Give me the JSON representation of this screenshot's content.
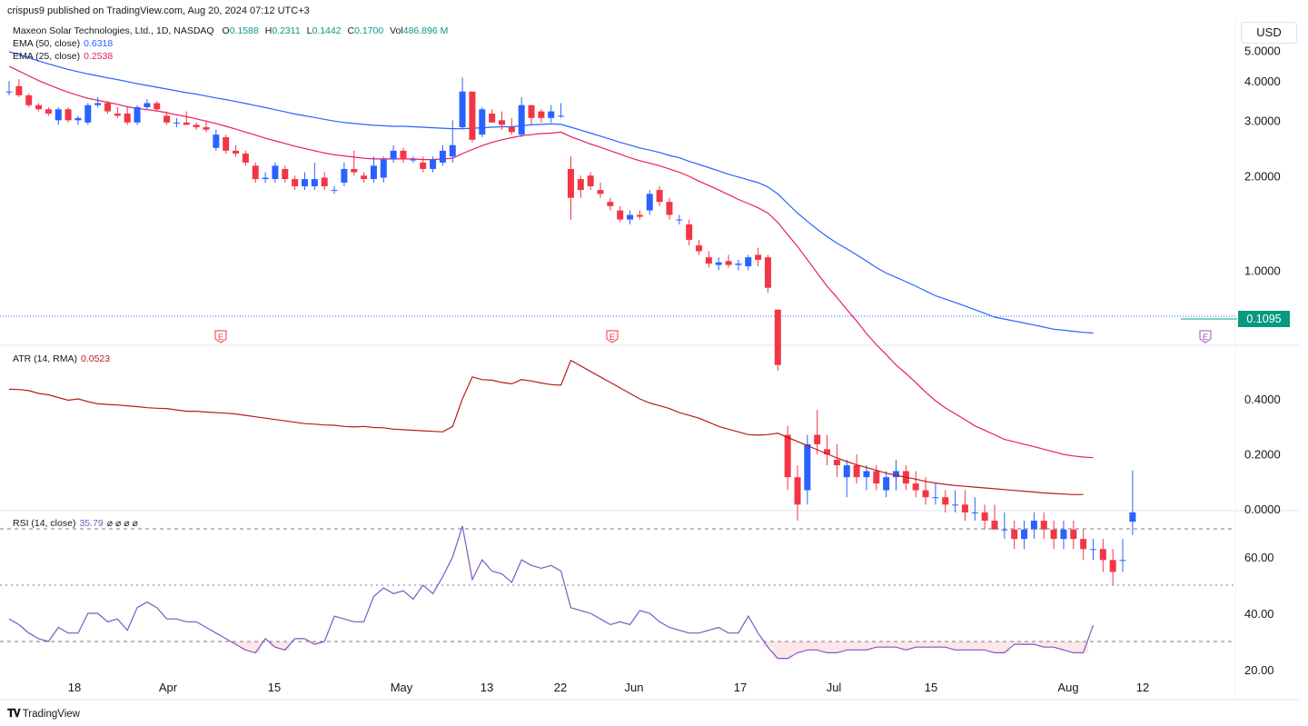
{
  "header": {
    "published_by": "crispus9 published on TradingView.com, Aug 20, 2024 07:12 UTC+3"
  },
  "main_legend": {
    "symbol": "Maxeon Solar Technologies, Ltd., 1D, NASDAQ",
    "o_label": "O",
    "o": "0.1588",
    "h_label": "H",
    "h": "0.2311",
    "l_label": "L",
    "l": "0.1442",
    "c_label": "C",
    "c": "0.1700",
    "vol_label": "Vol",
    "vol": "486.896 M"
  },
  "ema50": {
    "label": "EMA (50, close)",
    "value": "0.6318",
    "color": "#2962ff"
  },
  "ema25": {
    "label": "EMA (25, close)",
    "value": "0.2538",
    "color": "#e91e63"
  },
  "atr_legend": {
    "label": "ATR (14, RMA)",
    "value": "0.0523",
    "color": "#b71c1c"
  },
  "rsi_legend": {
    "label": "RSI (14, close)",
    "value": "35.79",
    "extras": "⌀ ⌀ ⌀ ⌀",
    "color": "#7e57c2"
  },
  "currency_button": "USD",
  "last_price": "0.1095",
  "earnings_marker": "E",
  "footer": {
    "brand": "TradingView"
  },
  "colors": {
    "up": "#2962ff",
    "down": "#f23645",
    "grid_text": "#131722",
    "last_price_bg": "#089981"
  },
  "chart_data": [
    {
      "type": "candlestick",
      "title": "Maxeon Solar Technologies, Ltd., 1D, NASDAQ",
      "y_ticks": [
        "5.0000",
        "4.0000",
        "3.0000",
        "2.0000",
        "1.0000"
      ],
      "x_ticks": [
        "18",
        "Apr",
        "15",
        "May",
        "13",
        "22",
        "Jun",
        "17",
        "Jul",
        "15",
        "Aug",
        "12"
      ],
      "scale": "log",
      "ohlc": [
        [
          3.7,
          4.0,
          3.6,
          3.7
        ],
        [
          3.85,
          4.05,
          3.55,
          3.6
        ],
        [
          3.6,
          3.65,
          3.3,
          3.35
        ],
        [
          3.35,
          3.4,
          3.2,
          3.25
        ],
        [
          3.25,
          3.3,
          3.1,
          3.15
        ],
        [
          3.0,
          3.3,
          2.9,
          3.25
        ],
        [
          3.25,
          3.3,
          2.95,
          3.0
        ],
        [
          3.0,
          3.1,
          2.9,
          3.05
        ],
        [
          2.95,
          3.4,
          2.9,
          3.35
        ],
        [
          3.35,
          3.55,
          3.3,
          3.4
        ],
        [
          3.4,
          3.45,
          3.15,
          3.2
        ],
        [
          3.15,
          3.3,
          3.05,
          3.1
        ],
        [
          3.15,
          3.3,
          2.9,
          2.95
        ],
        [
          2.95,
          3.35,
          2.9,
          3.3
        ],
        [
          3.3,
          3.5,
          3.25,
          3.4
        ],
        [
          3.4,
          3.45,
          3.2,
          3.25
        ],
        [
          3.1,
          3.2,
          2.9,
          2.95
        ],
        [
          2.95,
          3.05,
          2.85,
          2.95
        ],
        [
          2.95,
          3.2,
          2.9,
          2.9
        ],
        [
          2.9,
          2.95,
          2.8,
          2.85
        ],
        [
          2.85,
          3.0,
          2.75,
          2.8
        ],
        [
          2.45,
          2.8,
          2.4,
          2.7
        ],
        [
          2.65,
          2.7,
          2.35,
          2.4
        ],
        [
          2.4,
          2.5,
          2.3,
          2.35
        ],
        [
          2.35,
          2.4,
          2.15,
          2.2
        ],
        [
          2.15,
          2.2,
          1.9,
          1.95
        ],
        [
          1.95,
          2.05,
          1.9,
          1.97
        ],
        [
          1.95,
          2.2,
          1.9,
          2.15
        ],
        [
          2.1,
          2.15,
          1.9,
          1.95
        ],
        [
          1.95,
          2.0,
          1.8,
          1.85
        ],
        [
          1.85,
          2.05,
          1.8,
          1.95
        ],
        [
          1.85,
          2.2,
          1.8,
          1.95
        ],
        [
          1.97,
          2.05,
          1.8,
          1.85
        ],
        [
          1.8,
          1.85,
          1.75,
          1.8
        ],
        [
          1.9,
          2.2,
          1.85,
          2.1
        ],
        [
          2.1,
          2.4,
          2.0,
          2.05
        ],
        [
          2.0,
          2.05,
          1.9,
          1.95
        ],
        [
          1.95,
          2.3,
          1.9,
          2.15
        ],
        [
          1.97,
          2.3,
          1.9,
          2.25
        ],
        [
          2.25,
          2.5,
          2.2,
          2.4
        ],
        [
          2.4,
          2.45,
          2.2,
          2.25
        ],
        [
          2.25,
          2.3,
          2.2,
          2.25
        ],
        [
          2.2,
          2.3,
          2.05,
          2.1
        ],
        [
          2.1,
          2.3,
          2.05,
          2.25
        ],
        [
          2.2,
          2.5,
          2.15,
          2.4
        ],
        [
          2.3,
          3.0,
          2.2,
          2.5
        ],
        [
          2.85,
          4.1,
          2.8,
          3.7
        ],
        [
          3.7,
          3.7,
          2.55,
          2.6
        ],
        [
          2.7,
          3.3,
          2.65,
          3.25
        ],
        [
          3.15,
          3.25,
          2.95,
          2.95
        ],
        [
          3.0,
          3.2,
          2.8,
          2.9
        ],
        [
          2.85,
          3.05,
          2.7,
          2.75
        ],
        [
          2.7,
          3.55,
          2.65,
          3.35
        ],
        [
          3.35,
          3.35,
          2.9,
          3.05
        ],
        [
          3.2,
          3.25,
          2.95,
          3.05
        ],
        [
          3.05,
          3.35,
          2.95,
          3.2
        ],
        [
          3.1,
          3.4,
          3.05,
          3.1
        ],
        [
          2.1,
          2.3,
          1.45,
          1.7
        ],
        [
          1.95,
          2.0,
          1.7,
          1.8
        ],
        [
          2.0,
          2.05,
          1.8,
          1.85
        ],
        [
          1.8,
          1.9,
          1.7,
          1.75
        ],
        [
          1.65,
          1.7,
          1.55,
          1.6
        ],
        [
          1.55,
          1.6,
          1.42,
          1.45
        ],
        [
          1.45,
          1.55,
          1.4,
          1.5
        ],
        [
          1.5,
          1.55,
          1.45,
          1.48
        ],
        [
          1.55,
          1.8,
          1.5,
          1.75
        ],
        [
          1.8,
          1.85,
          1.6,
          1.65
        ],
        [
          1.65,
          1.7,
          1.45,
          1.5
        ],
        [
          1.45,
          1.5,
          1.4,
          1.45
        ],
        [
          1.4,
          1.45,
          1.2,
          1.25
        ],
        [
          1.2,
          1.25,
          1.12,
          1.15
        ],
        [
          1.1,
          1.15,
          1.02,
          1.05
        ],
        [
          1.04,
          1.1,
          1.0,
          1.06
        ],
        [
          1.07,
          1.12,
          1.02,
          1.04
        ],
        [
          1.04,
          1.08,
          1.0,
          1.05
        ],
        [
          1.03,
          1.12,
          1.0,
          1.1
        ],
        [
          1.12,
          1.18,
          1.03,
          1.08
        ],
        [
          1.1,
          1.12,
          0.85,
          0.88
        ],
        [
          0.75,
          0.75,
          0.48,
          0.5
        ],
        [
          0.3,
          0.32,
          0.2,
          0.22
        ],
        [
          0.22,
          0.24,
          0.16,
          0.18
        ],
        [
          0.2,
          0.3,
          0.18,
          0.28
        ],
        [
          0.3,
          0.36,
          0.26,
          0.28
        ],
        [
          0.27,
          0.3,
          0.24,
          0.26
        ],
        [
          0.25,
          0.28,
          0.22,
          0.24
        ],
        [
          0.22,
          0.25,
          0.19,
          0.24
        ],
        [
          0.24,
          0.26,
          0.21,
          0.22
        ],
        [
          0.22,
          0.24,
          0.2,
          0.23
        ],
        [
          0.23,
          0.24,
          0.2,
          0.21
        ],
        [
          0.2,
          0.23,
          0.19,
          0.22
        ],
        [
          0.22,
          0.25,
          0.2,
          0.23
        ],
        [
          0.23,
          0.24,
          0.2,
          0.21
        ],
        [
          0.21,
          0.23,
          0.19,
          0.2
        ],
        [
          0.2,
          0.22,
          0.18,
          0.19
        ],
        [
          0.19,
          0.21,
          0.18,
          0.19
        ],
        [
          0.19,
          0.2,
          0.17,
          0.18
        ],
        [
          0.18,
          0.2,
          0.17,
          0.18
        ],
        [
          0.18,
          0.2,
          0.16,
          0.17
        ],
        [
          0.17,
          0.19,
          0.16,
          0.17
        ],
        [
          0.17,
          0.18,
          0.15,
          0.16
        ],
        [
          0.16,
          0.18,
          0.15,
          0.15
        ],
        [
          0.15,
          0.17,
          0.14,
          0.15
        ],
        [
          0.15,
          0.16,
          0.13,
          0.14
        ],
        [
          0.14,
          0.16,
          0.13,
          0.15
        ],
        [
          0.15,
          0.17,
          0.14,
          0.16
        ],
        [
          0.16,
          0.17,
          0.14,
          0.15
        ],
        [
          0.15,
          0.16,
          0.13,
          0.14
        ],
        [
          0.14,
          0.16,
          0.13,
          0.15
        ],
        [
          0.15,
          0.16,
          0.13,
          0.14
        ],
        [
          0.14,
          0.15,
          0.12,
          0.13
        ],
        [
          0.13,
          0.14,
          0.12,
          0.13
        ],
        [
          0.13,
          0.14,
          0.11,
          0.12
        ],
        [
          0.12,
          0.13,
          0.1,
          0.11
        ],
        [
          0.12,
          0.14,
          0.11,
          0.12
        ],
        [
          0.1588,
          0.2311,
          0.1442,
          0.17
        ]
      ],
      "ema50": [
        4.95,
        4.85,
        4.74,
        4.63,
        4.53,
        4.44,
        4.35,
        4.28,
        4.21,
        4.15,
        4.09,
        4.04,
        3.98,
        3.92,
        3.87,
        3.82,
        3.77,
        3.72,
        3.67,
        3.63,
        3.58,
        3.53,
        3.49,
        3.44,
        3.39,
        3.34,
        3.29,
        3.24,
        3.19,
        3.14,
        3.1,
        3.06,
        3.02,
        2.98,
        2.95,
        2.93,
        2.91,
        2.89,
        2.88,
        2.87,
        2.87,
        2.86,
        2.85,
        2.84,
        2.83,
        2.82,
        2.82,
        2.83,
        2.84,
        2.85,
        2.86,
        2.86,
        2.88,
        2.9,
        2.91,
        2.92,
        2.91,
        2.85,
        2.79,
        2.73,
        2.67,
        2.61,
        2.55,
        2.5,
        2.45,
        2.41,
        2.37,
        2.32,
        2.28,
        2.22,
        2.17,
        2.12,
        2.07,
        2.02,
        1.98,
        1.94,
        1.9,
        1.84,
        1.75,
        1.63,
        1.52,
        1.43,
        1.35,
        1.28,
        1.22,
        1.17,
        1.12,
        1.07,
        1.02,
        0.98,
        0.95,
        0.92,
        0.89,
        0.86,
        0.83,
        0.81,
        0.79,
        0.77,
        0.75,
        0.73,
        0.71,
        0.7,
        0.69,
        0.68,
        0.67,
        0.66,
        0.65,
        0.645,
        0.64,
        0.635,
        0.632
      ],
      "ema25": [
        4.45,
        4.3,
        4.15,
        4.01,
        3.89,
        3.78,
        3.68,
        3.6,
        3.52,
        3.47,
        3.42,
        3.37,
        3.31,
        3.27,
        3.24,
        3.21,
        3.17,
        3.12,
        3.08,
        3.03,
        2.98,
        2.93,
        2.87,
        2.81,
        2.75,
        2.69,
        2.63,
        2.58,
        2.53,
        2.48,
        2.44,
        2.4,
        2.36,
        2.33,
        2.31,
        2.29,
        2.27,
        2.26,
        2.26,
        2.26,
        2.26,
        2.26,
        2.25,
        2.25,
        2.26,
        2.27,
        2.35,
        2.42,
        2.49,
        2.55,
        2.6,
        2.64,
        2.68,
        2.7,
        2.72,
        2.73,
        2.75,
        2.66,
        2.59,
        2.52,
        2.46,
        2.4,
        2.34,
        2.28,
        2.23,
        2.19,
        2.15,
        2.1,
        2.05,
        1.99,
        1.92,
        1.86,
        1.8,
        1.74,
        1.68,
        1.63,
        1.58,
        1.52,
        1.42,
        1.3,
        1.19,
        1.08,
        0.98,
        0.89,
        0.82,
        0.75,
        0.69,
        0.63,
        0.58,
        0.54,
        0.5,
        0.47,
        0.44,
        0.41,
        0.385,
        0.365,
        0.35,
        0.335,
        0.32,
        0.31,
        0.3,
        0.29,
        0.285,
        0.28,
        0.275,
        0.27,
        0.265,
        0.26,
        0.257,
        0.255,
        0.2538
      ]
    },
    {
      "type": "line",
      "title": "ATR (14, RMA)",
      "y_ticks": [
        "0.4000",
        "0.2000",
        "0.0000"
      ],
      "values": [
        0.435,
        0.434,
        0.43,
        0.42,
        0.415,
        0.405,
        0.395,
        0.4,
        0.39,
        0.382,
        0.38,
        0.378,
        0.375,
        0.372,
        0.368,
        0.366,
        0.365,
        0.36,
        0.355,
        0.355,
        0.352,
        0.35,
        0.348,
        0.345,
        0.34,
        0.335,
        0.33,
        0.325,
        0.32,
        0.315,
        0.31,
        0.308,
        0.305,
        0.304,
        0.3,
        0.298,
        0.3,
        0.296,
        0.295,
        0.29,
        0.288,
        0.286,
        0.284,
        0.282,
        0.28,
        0.3,
        0.4,
        0.48,
        0.47,
        0.468,
        0.46,
        0.455,
        0.47,
        0.465,
        0.458,
        0.452,
        0.45,
        0.54,
        0.52,
        0.5,
        0.48,
        0.46,
        0.44,
        0.42,
        0.4,
        0.385,
        0.375,
        0.365,
        0.35,
        0.34,
        0.33,
        0.315,
        0.3,
        0.29,
        0.28,
        0.27,
        0.268,
        0.27,
        0.275,
        0.26,
        0.245,
        0.23,
        0.215,
        0.2,
        0.185,
        0.172,
        0.16,
        0.15,
        0.14,
        0.13,
        0.122,
        0.115,
        0.108,
        0.1,
        0.094,
        0.089,
        0.085,
        0.082,
        0.079,
        0.076,
        0.073,
        0.07,
        0.067,
        0.064,
        0.061,
        0.058,
        0.056,
        0.054,
        0.052,
        0.0523
      ]
    },
    {
      "type": "line",
      "title": "RSI (14, close)",
      "y_ticks": [
        "60.00",
        "40.00",
        "20.00"
      ],
      "bands": [
        70,
        50,
        30
      ],
      "values": [
        38,
        36,
        33,
        31,
        30,
        35,
        33,
        33,
        40,
        40,
        37,
        38,
        34,
        42,
        44,
        42,
        38,
        38,
        37,
        37,
        35,
        33,
        31,
        29,
        27,
        26,
        31,
        28,
        27,
        31,
        31,
        29,
        30,
        39,
        38,
        37,
        37,
        46,
        49,
        47,
        48,
        45,
        50,
        47,
        53,
        60,
        71,
        52,
        59,
        55,
        54,
        51,
        59,
        57,
        56,
        57,
        55,
        42,
        41,
        40,
        38,
        36,
        37,
        36,
        41,
        40,
        37,
        35,
        34,
        33,
        33,
        34,
        35,
        33,
        33,
        39,
        33,
        28,
        24,
        24,
        26,
        27,
        27,
        26,
        26,
        27,
        27,
        27,
        28,
        28,
        28,
        27,
        28,
        28,
        28,
        28,
        27,
        27,
        27,
        27,
        26,
        26,
        29,
        29,
        29,
        28,
        28,
        27,
        26,
        26,
        35.79
      ]
    }
  ]
}
